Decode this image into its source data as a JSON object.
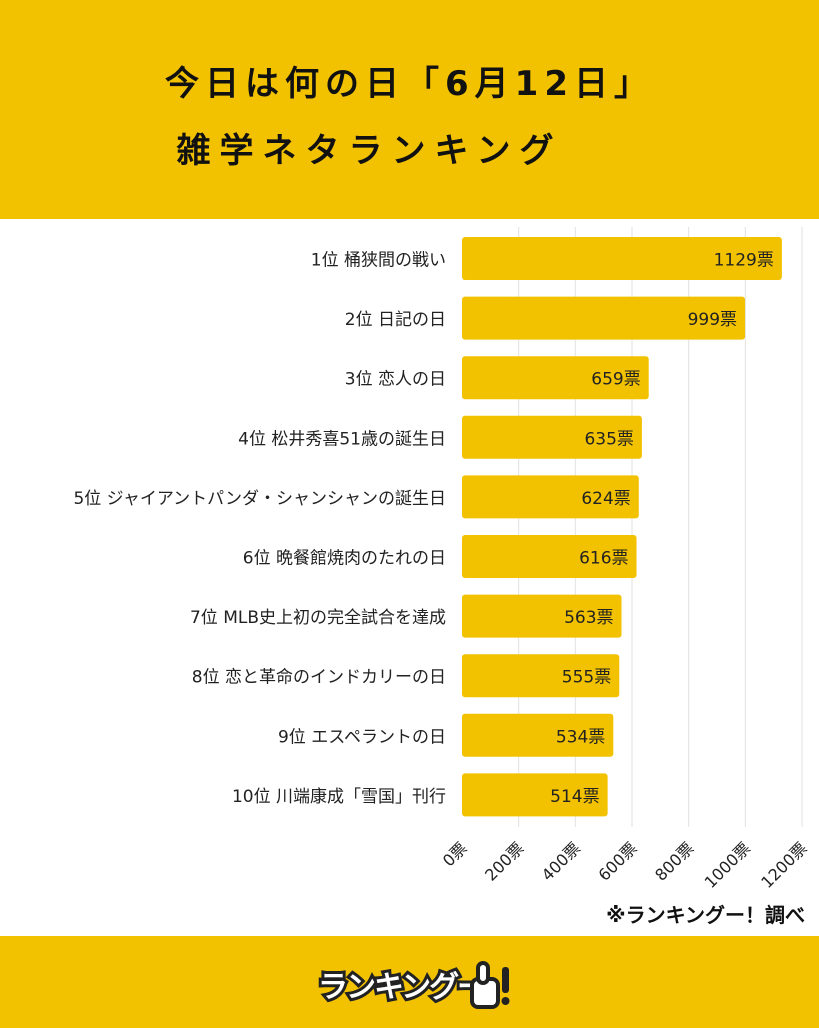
{
  "title_line1": "今日は何の日「6月12日」",
  "title_line2": "雑学ネタランキング",
  "source_note": "※ランキングー！調べ",
  "logo_text": "ランキングー！",
  "colors": {
    "background": "#F2C200",
    "bar": "#F2C200",
    "panel": "#FFFFFF",
    "text": "#111111"
  },
  "chart_data": {
    "type": "bar",
    "orientation": "horizontal",
    "categories": [
      "1位 桶狭間の戦い",
      "2位 日記の日",
      "3位 恋人の日",
      "4位 松井秀喜51歳の誕生日",
      "5位 ジャイアントパンダ・シャンシャンの誕生日",
      "6位 晩餐館焼肉のたれの日",
      "7位 MLB史上初の完全試合を達成",
      "8位 恋と革命のインドカリーの日",
      "9位 エスペラントの日",
      "10位 川端康成「雪国」刊行"
    ],
    "values": [
      1129,
      999,
      659,
      635,
      624,
      616,
      563,
      555,
      534,
      514
    ],
    "value_labels": [
      "1129票",
      "999票",
      "659票",
      "635票",
      "624票",
      "616票",
      "563票",
      "555票",
      "534票",
      "514票"
    ],
    "x_ticks": [
      0,
      200,
      400,
      600,
      800,
      1000,
      1200
    ],
    "x_tick_labels": [
      "0票",
      "200票",
      "400票",
      "600票",
      "800票",
      "1000票",
      "1200票"
    ],
    "xlim": [
      0,
      1200
    ],
    "grid": true
  }
}
